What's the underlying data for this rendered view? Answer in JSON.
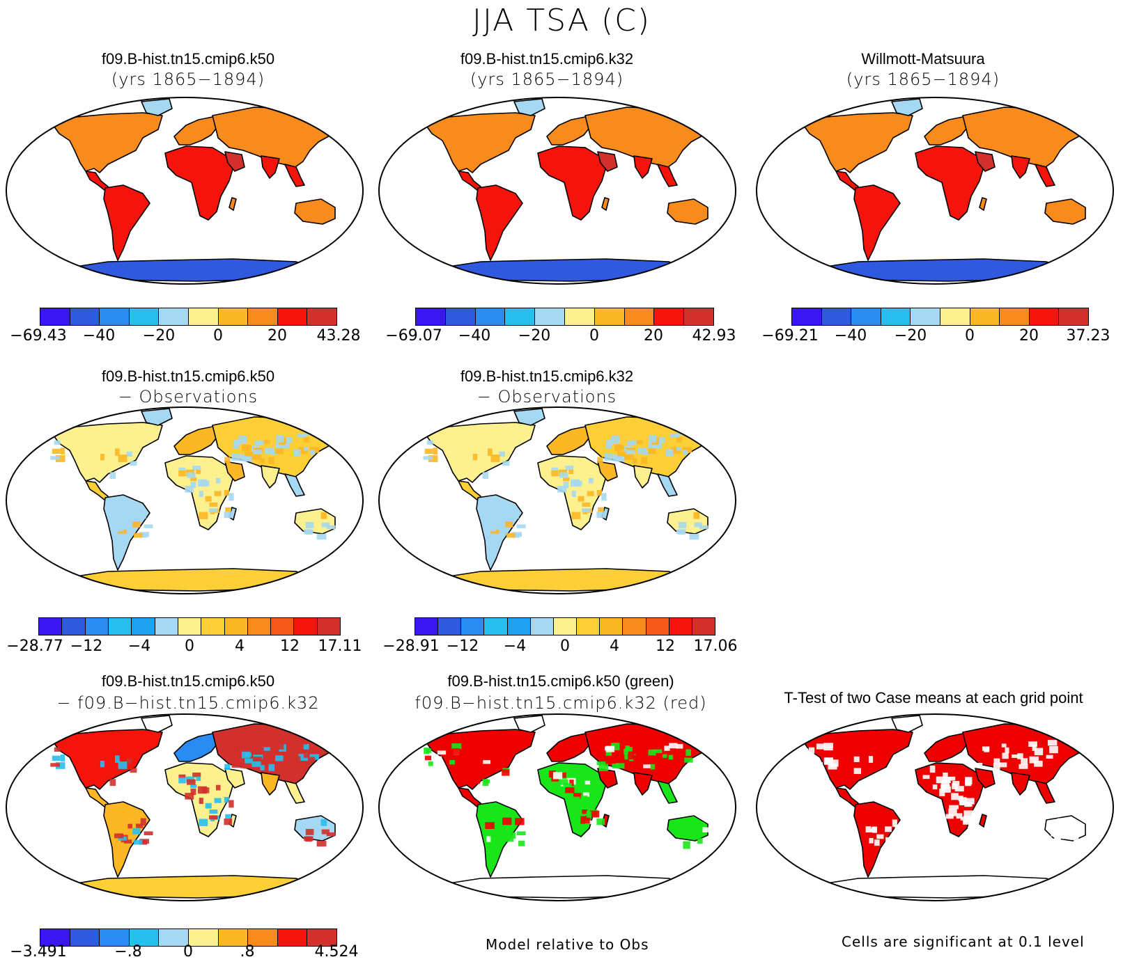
{
  "figure_title": "JJA TSA (C)",
  "panels": [
    {
      "title1": "f09.B-hist.tn15.cmip6.k50",
      "title2": "(yrs 1865−1894)"
    },
    {
      "title1": "f09.B-hist.tn15.cmip6.k32",
      "title2": "(yrs 1865−1894)"
    },
    {
      "title1": "Willmott-Matsuura",
      "title2": "(yrs 1865−1894)"
    },
    {
      "title1": "f09.B-hist.tn15.cmip6.k50",
      "title2": "− Observations"
    },
    {
      "title1": "f09.B-hist.tn15.cmip6.k32",
      "title2": "− Observations"
    },
    {
      "title1": "f09.B-hist.tn15.cmip6.k50",
      "title2": "− f09.B−hist.tn15.cmip6.k32"
    },
    {
      "title1": "f09.B-hist.tn15.cmip6.k50 (green)",
      "title2": "f09.B−hist.tn15.cmip6.k32 (red)"
    },
    {
      "title1": "T-Test of two Case means at each grid point",
      "title2": ""
    }
  ],
  "colorbars": [
    {
      "ticks": [
        "−69.43",
        "−40",
        "−20",
        "0",
        "20",
        "43.28"
      ]
    },
    {
      "ticks": [
        "−69.07",
        "−40",
        "−20",
        "0",
        "20",
        "42.93"
      ]
    },
    {
      "ticks": [
        "−69.21",
        "−40",
        "−20",
        "0",
        "20",
        "37.23"
      ]
    },
    {
      "ticks": [
        "−28.77",
        "−12",
        "−4",
        "0",
        "4",
        "12",
        "17.11"
      ]
    },
    {
      "ticks": [
        "−28.91",
        "−12",
        "−4",
        "0",
        "4",
        "12",
        "17.06"
      ]
    },
    {
      "ticks": [
        "−3.491",
        "−.8",
        "0",
        ".8",
        "4.524"
      ]
    }
  ],
  "notes": {
    "model_relative": "Model relative to Obs",
    "significance": "Cells are significant at 0.1 level"
  },
  "colors": {
    "abs_scale": [
      "#3a16f0",
      "#2f5ae0",
      "#2a8cf2",
      "#27bff0",
      "#a5d8f2",
      "#fdf18f",
      "#fbb724",
      "#f98a1c",
      "#f4140c",
      "#d2302c"
    ],
    "diff_scale": [
      "#3a16f0",
      "#2f5ae0",
      "#2a8cf2",
      "#27bff0",
      "#1fa2f0",
      "#a5d8f2",
      "#fdf18f",
      "#fbcf35",
      "#fbb724",
      "#f98a1c",
      "#f55a1c",
      "#f4140c",
      "#d2302c"
    ],
    "sig_green": "#19e619",
    "sig_red": "#ee0000"
  }
}
